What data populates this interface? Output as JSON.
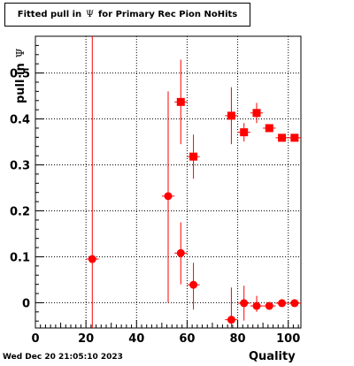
{
  "title": {
    "prefix": "Fitted pull in",
    "symbol": "Ψ",
    "suffix": "for Primary Rec Pion NoHits"
  },
  "timestamp": "Wed Dec 20 21:05:10 2023",
  "colors": {
    "marker": "#ff0000",
    "frame": "#000000",
    "grid": "#000000"
  },
  "chart_data": {
    "type": "scatter",
    "xlabel": "Quality",
    "ylabel": "pull in",
    "ylabel_symbol": "Ψ",
    "xlim": [
      0,
      105
    ],
    "ylim": [
      -0.055,
      0.58
    ],
    "x_ticks": [
      0,
      20,
      40,
      60,
      80,
      100
    ],
    "y_ticks": [
      0,
      0.1,
      0.2,
      0.3,
      0.4,
      0.5
    ],
    "y_tick_labels": [
      "0",
      "0.1",
      "0.2",
      "0.3",
      "0.4",
      "0.5"
    ],
    "grid": true,
    "series": [
      {
        "marker": "circle",
        "points": [
          {
            "x": 22.5,
            "y": 0.095,
            "yerr_low": 0.16,
            "yerr_high": 0.485,
            "xerr": 2.5
          },
          {
            "x": 52.5,
            "y": 0.232,
            "yerr_low": 0.232,
            "yerr_high": 0.228,
            "xerr": 2.5
          },
          {
            "x": 57.5,
            "y": 0.108,
            "yerr_low": 0.068,
            "yerr_high": 0.067,
            "xerr": 2.5
          },
          {
            "x": 62.5,
            "y": 0.039,
            "yerr_low": 0.054,
            "yerr_high": 0.048,
            "xerr": 2.5
          },
          {
            "x": 77.5,
            "y": -0.037,
            "yerr_low": 0.018,
            "yerr_high": 0.07,
            "xerr": 2.5
          },
          {
            "x": 82.5,
            "y": -0.001,
            "yerr_low": 0.038,
            "yerr_high": 0.038,
            "xerr": 2.5
          },
          {
            "x": 87.5,
            "y": -0.007,
            "yerr_low": 0.013,
            "yerr_high": 0.022,
            "xerr": 2.5
          },
          {
            "x": 92.5,
            "y": -0.007,
            "yerr_low": 0.004,
            "yerr_high": 0.004,
            "xerr": 2.5
          },
          {
            "x": 97.5,
            "y": -0.001,
            "yerr_low": 0.003,
            "yerr_high": 0.003,
            "xerr": 2.5
          },
          {
            "x": 102.5,
            "y": -0.001,
            "yerr_low": 0.002,
            "yerr_high": 0.002,
            "xerr": 2.5
          }
        ]
      },
      {
        "marker": "square",
        "points": [
          {
            "x": 57.5,
            "y": 0.437,
            "yerr_low": 0.092,
            "yerr_high": 0.092,
            "xerr": 2.5
          },
          {
            "x": 62.5,
            "y": 0.318,
            "yerr_low": 0.048,
            "yerr_high": 0.048,
            "xerr": 2.5
          },
          {
            "x": 77.5,
            "y": 0.407,
            "yerr_low": 0.062,
            "yerr_high": 0.062,
            "xerr": 2.5
          },
          {
            "x": 82.5,
            "y": 0.371,
            "yerr_low": 0.02,
            "yerr_high": 0.02,
            "xerr": 2.5
          },
          {
            "x": 87.5,
            "y": 0.413,
            "yerr_low": 0.022,
            "yerr_high": 0.022,
            "xerr": 2.5
          },
          {
            "x": 92.5,
            "y": 0.38,
            "yerr_low": 0.006,
            "yerr_high": 0.006,
            "xerr": 2.5
          },
          {
            "x": 97.5,
            "y": 0.359,
            "yerr_low": 0.004,
            "yerr_high": 0.004,
            "xerr": 2.5
          },
          {
            "x": 102.5,
            "y": 0.359,
            "yerr_low": 0.004,
            "yerr_high": 0.004,
            "xerr": 2.5
          }
        ]
      }
    ]
  }
}
